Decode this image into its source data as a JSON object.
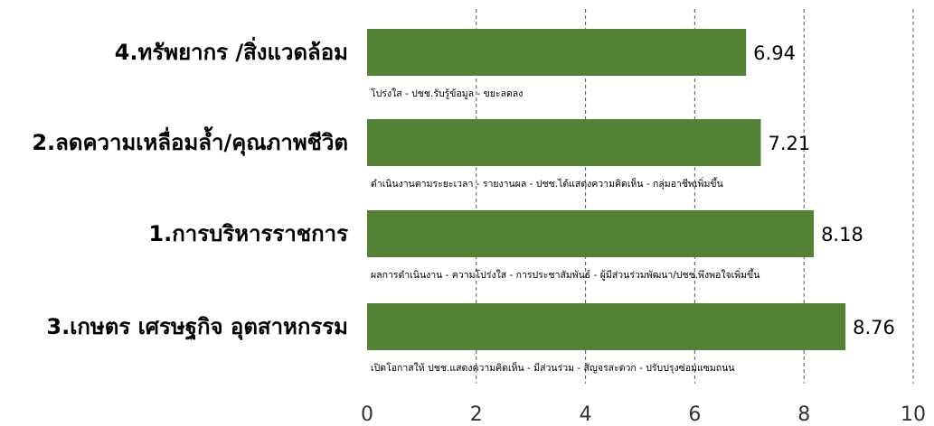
{
  "chart_data": {
    "type": "bar",
    "orientation": "horizontal",
    "categories": [
      "4.ทรัพยากร /สิ่งแวดล้อม",
      "2.ลดความเหลื่อมล้ำ/คุณภาพชีวิต",
      "1.การบริหารราชการ",
      "3.เกษตร เศรษฐกิจ อุตสาหกรรม"
    ],
    "values": [
      6.94,
      7.21,
      8.18,
      8.76
    ],
    "value_labels": [
      "6.94",
      "7.21",
      "8.18",
      "8.76"
    ],
    "annotations": [
      "โปร่งใส - ปชช.รับรู้ข้อมูล - ขยะลดลง",
      "ดำเนินงานตามระยะเวลา - รายงานผล - ปชช.ได้แสดงความคิดเห็น - กลุ่มอาชีพเพิ่มขึ้น",
      "ผลการดำเนินงาน - ความโปร่งใส - การประชาสัมพันธ์ - ผู้มีส่วนร่วมพัฒนา/ปชช.พึงพอใจเพิ่มขึ้น",
      "เปิดโอกาสให้ ปชช.แสดงความคิดเห็น - มีส่วนร่วม - สัญจรสะดวก - ปรับปรุงซ่อมแซมถนน"
    ],
    "xlim": [
      0,
      10
    ],
    "xticks": [
      0,
      2,
      4,
      6,
      8,
      10
    ],
    "xtick_labels": [
      "0",
      "2",
      "4",
      "6",
      "8",
      "10"
    ],
    "grid": "vertical dashed",
    "bar_color": "#548235",
    "legend": "none"
  }
}
